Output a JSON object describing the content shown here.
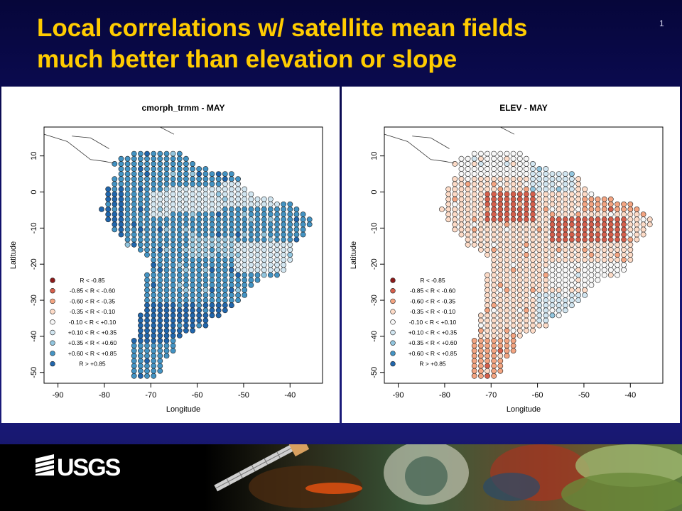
{
  "header": {
    "title_line1": "Local correlations w/ satellite mean fields",
    "title_line2": "much better than elevation or slope",
    "slide_number": "1"
  },
  "footer": {
    "logo_text": "USGS"
  },
  "chart_data": [
    {
      "type": "scatter",
      "title": "cmorph_trmm - MAY",
      "xlabel": "Longitude",
      "ylabel": "Latitude",
      "xlim": [
        -93,
        -33
      ],
      "ylim": [
        -53,
        18
      ],
      "xticks": [
        "-90",
        "-80",
        "-70",
        "-60",
        "-50",
        "-40"
      ],
      "yticks": [
        "10",
        "0",
        "-10",
        "-20",
        "-30",
        "-40",
        "-50"
      ],
      "color_scheme": "blue",
      "legend_position": "bottom-left",
      "legend": [
        "R < -0.85",
        "-0.85 < R < -0.60",
        "-0.60 < R < -0.35",
        "-0.35 < R < -0.10",
        "-0.10 < R < +0.10",
        "+0.10 < R < +0.35",
        "+0.35 < R < +0.60",
        "+0.60 < R < +0.85",
        "R > +0.85"
      ],
      "legend_colors": [
        "#8b1a1a",
        "#d6604d",
        "#f4a582",
        "#fddbc7",
        "#f7f7f7",
        "#d1e5f0",
        "#92c5de",
        "#4393c3",
        "#2166ac"
      ]
    },
    {
      "type": "scatter",
      "title": "ELEV - MAY",
      "xlabel": "Longitude",
      "ylabel": "Latitude",
      "xlim": [
        -93,
        -33
      ],
      "ylim": [
        -53,
        18
      ],
      "xticks": [
        "-90",
        "-80",
        "-70",
        "-60",
        "-50",
        "-40"
      ],
      "yticks": [
        "10",
        "0",
        "-10",
        "-20",
        "-30",
        "-40",
        "-50"
      ],
      "color_scheme": "red",
      "legend_position": "bottom-left",
      "legend": [
        "R < -0.85",
        "-0.85 < R < -0.60",
        "-0.60 < R < -0.35",
        "-0.35 < R < -0.10",
        "-0.10 < R < +0.10",
        "+0.10 < R < +0.35",
        "+0.35 < R < +0.60",
        "+0.60 < R < +0.85",
        "R > +0.85"
      ],
      "legend_colors": [
        "#8b1a1a",
        "#d6604d",
        "#f4a582",
        "#fddbc7",
        "#f7f7f7",
        "#d1e5f0",
        "#92c5de",
        "#4393c3",
        "#2166ac"
      ]
    }
  ]
}
